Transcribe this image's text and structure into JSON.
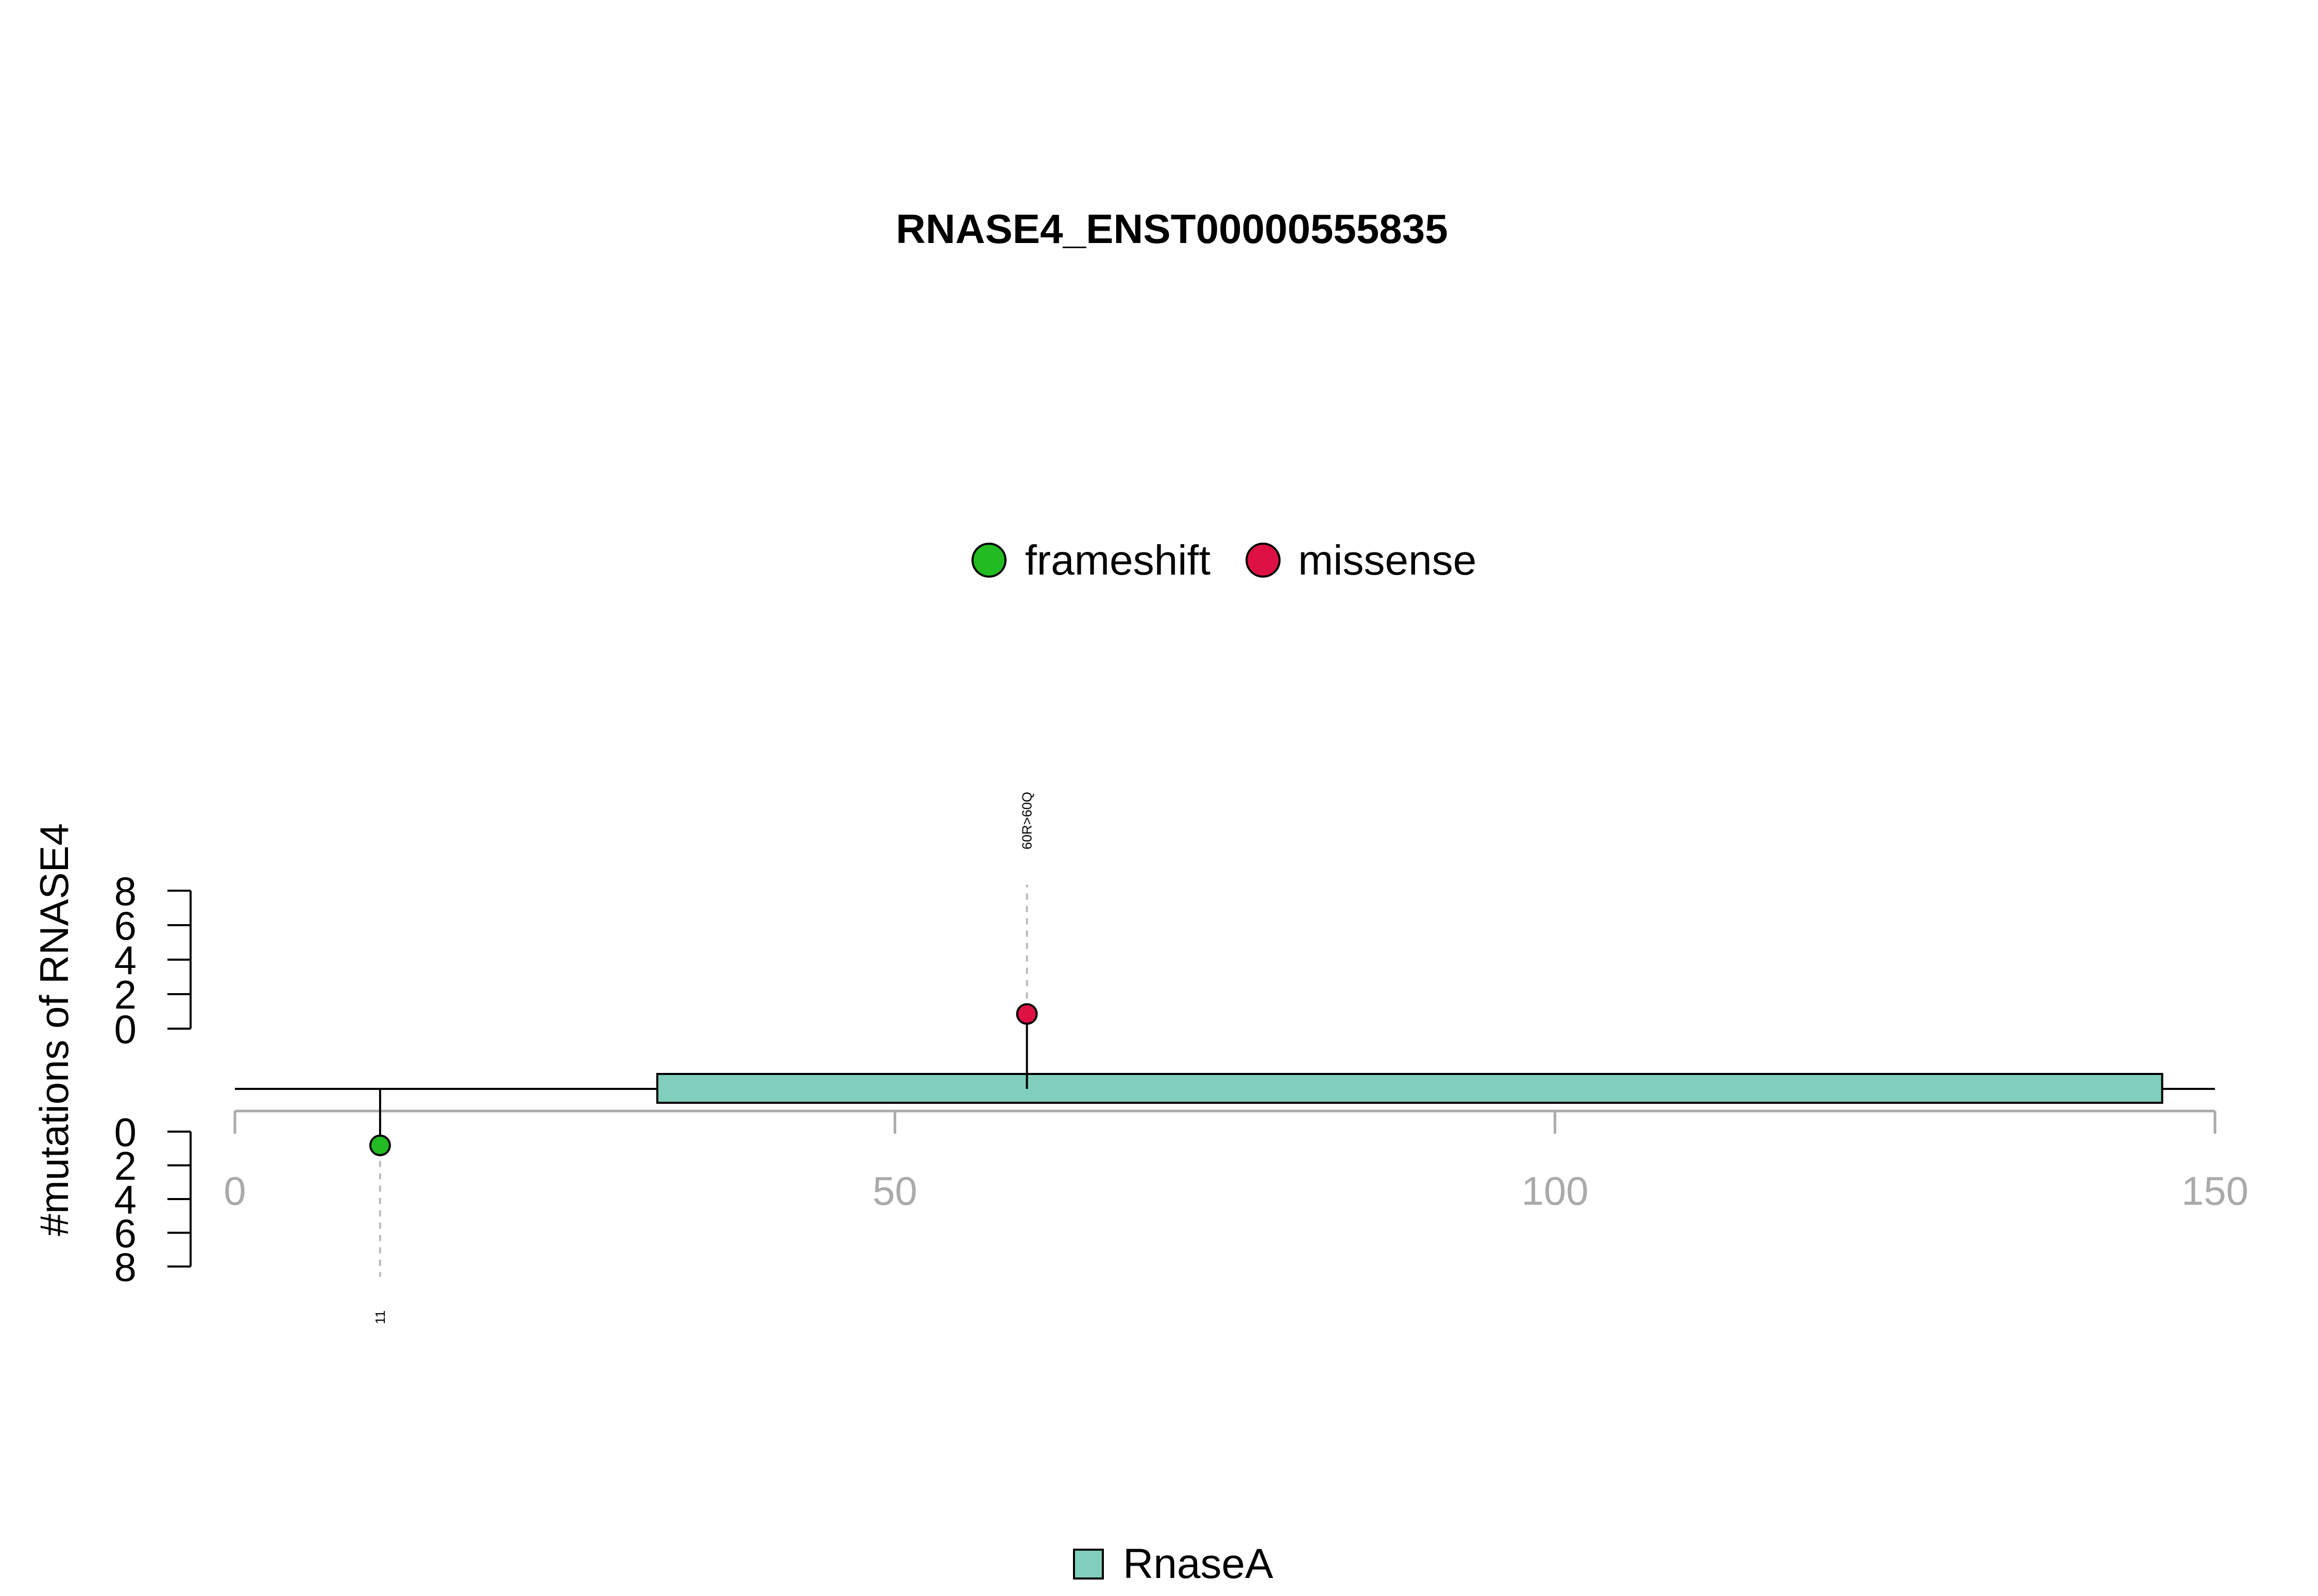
{
  "chart_data": {
    "type": "lollipop",
    "title": "RNASE4_ENST00000555835",
    "ylabel": "#mutations of RNASE4",
    "xlim": [
      0,
      150
    ],
    "x_ticks": [
      0,
      50,
      100,
      150
    ],
    "y_ticks": [
      0,
      2,
      4,
      6,
      8
    ],
    "ylim": [
      0,
      8
    ],
    "legend": [
      {
        "label": "frameshift",
        "color": "#22bb22"
      },
      {
        "label": "missense",
        "color": "#dd1144"
      }
    ],
    "domain_legend": [
      {
        "label": "RnaseA",
        "color": "#7fcfbc"
      }
    ],
    "protein": {
      "start": 0,
      "end": 150
    },
    "domains": [
      {
        "name": "RnaseA",
        "start": 32,
        "end": 146,
        "color": "#7fcfbc"
      }
    ],
    "mutations": [
      {
        "position": 11,
        "count": 1,
        "type": "frameshift",
        "side": "below",
        "label": "11",
        "color": "#22bb22"
      },
      {
        "position": 60,
        "count": 1,
        "type": "missense",
        "side": "above",
        "label": "60R>60Q",
        "color": "#dd1144"
      }
    ]
  }
}
